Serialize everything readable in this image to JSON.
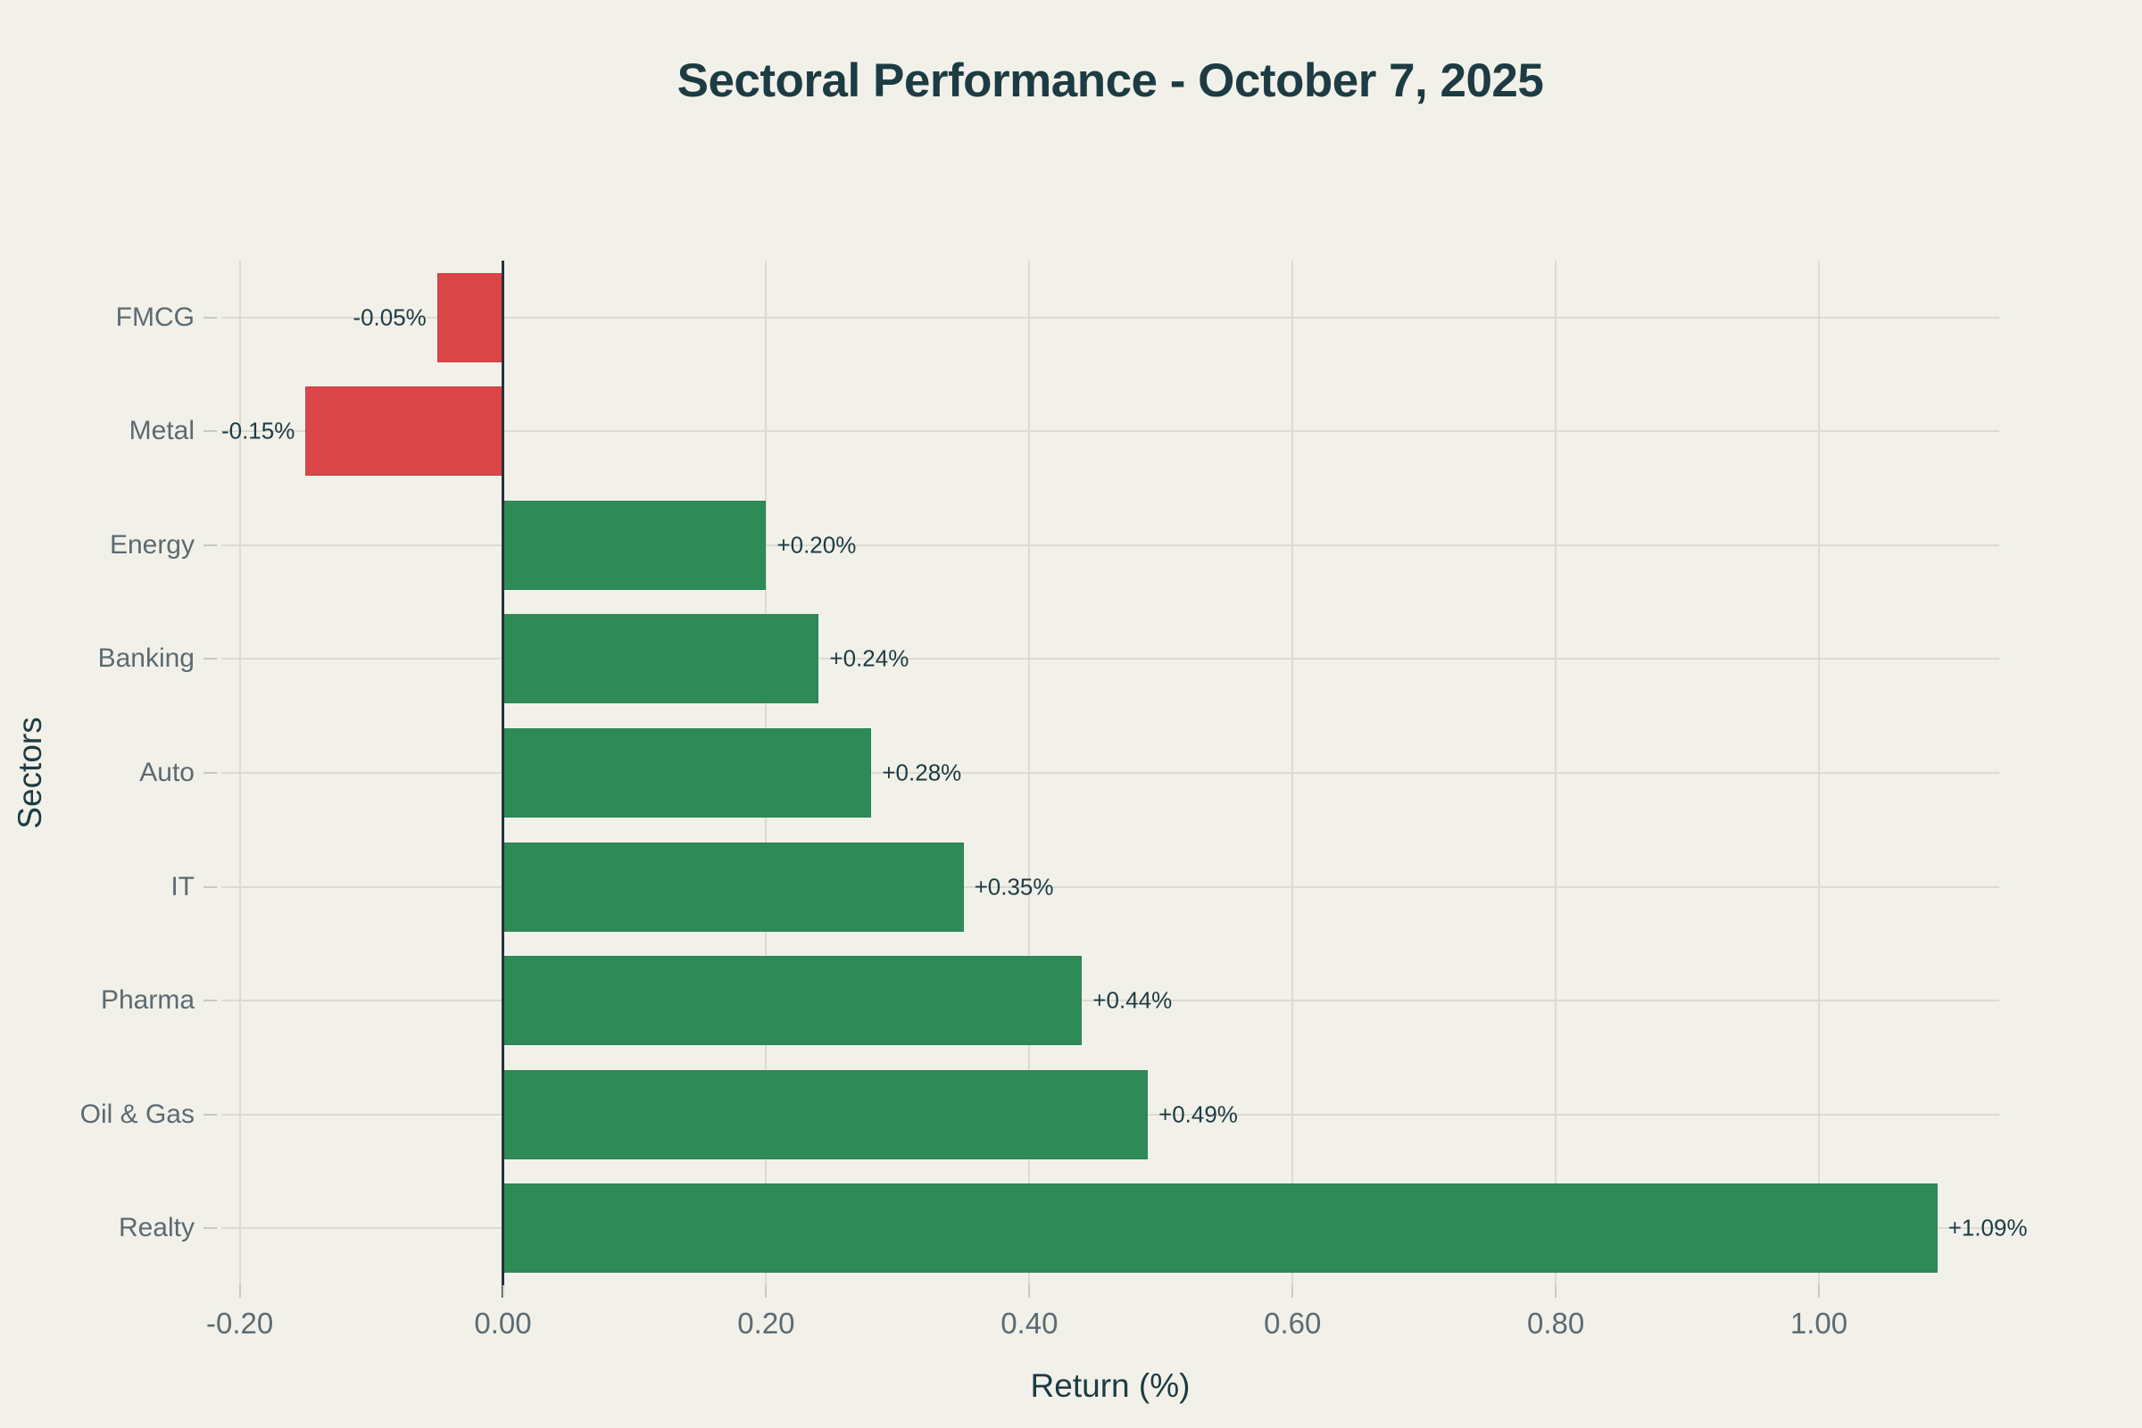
{
  "title": "Sectoral Performance - October 7, 2025",
  "axes": {
    "x_label": "Return (%)",
    "y_label": "Sectors",
    "x_tick_labels": [
      "-0.20",
      "0.00",
      "0.20",
      "0.40",
      "0.60",
      "0.80",
      "1.00"
    ]
  },
  "colors": {
    "background": "#f1f1ea",
    "positive": "#2e8b57",
    "negative": "#da4548",
    "title_text": "#1d3b42",
    "value_text": "#1d3b42",
    "tick_text": "#5d6a71",
    "grid": "#dcdad3",
    "tick_mark": "#c9c9c2",
    "zero_line": "#263238"
  },
  "chart_data": {
    "type": "bar",
    "orientation": "horizontal",
    "title": "Sectoral Performance - October 7, 2025",
    "xlabel": "Return (%)",
    "ylabel": "Sectors",
    "categories": [
      "FMCG",
      "Metal",
      "Energy",
      "Banking",
      "Auto",
      "IT",
      "Pharma",
      "Oil & Gas",
      "Realty"
    ],
    "values": [
      -0.05,
      -0.15,
      0.2,
      0.24,
      0.28,
      0.35,
      0.44,
      0.49,
      1.09
    ],
    "value_labels": [
      "-0.05%",
      "-0.15%",
      "+0.20%",
      "+0.24%",
      "+0.28%",
      "+0.35%",
      "+0.44%",
      "+0.49%",
      "+1.09%"
    ],
    "x_tick_values": [
      -0.2,
      0.0,
      0.2,
      0.4,
      0.6,
      0.8,
      1.0
    ],
    "x_tick_labels": [
      "-0.20",
      "0.00",
      "0.20",
      "0.40",
      "0.60",
      "0.80",
      "1.00"
    ],
    "xlim": [
      -0.214,
      1.137
    ],
    "grid": true,
    "legend": false,
    "zero_line": true
  }
}
